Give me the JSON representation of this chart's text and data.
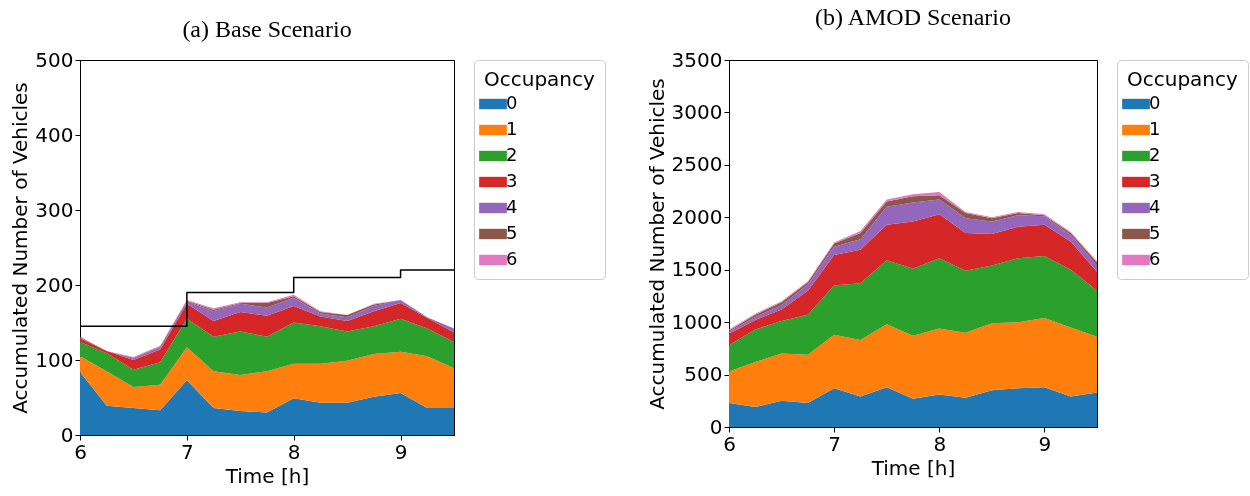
{
  "chart_data": [
    {
      "type": "area",
      "title": "(a) Base Scenario",
      "xlabel": "Time [h]",
      "ylabel": "Accumulated Number of Vehicles",
      "legend_title": "Occupancy",
      "legend": "right",
      "stacked": true,
      "xlim": [
        6,
        9.5
      ],
      "xticks": [
        6,
        7,
        8,
        9
      ],
      "ylim": [
        0,
        500
      ],
      "yticks": [
        0,
        100,
        200,
        300,
        400,
        500
      ],
      "x": [
        6,
        6.25,
        6.5,
        6.75,
        7,
        7.25,
        7.5,
        7.75,
        8,
        8.25,
        8.5,
        8.75,
        9,
        9.25,
        9.5
      ],
      "series": [
        {
          "name": "0",
          "color": "#1f77b4",
          "values": [
            84,
            39,
            36,
            33,
            73,
            36,
            32,
            30,
            49,
            43,
            43,
            51,
            56,
            36,
            36
          ]
        },
        {
          "name": "1",
          "color": "#ff7f0e",
          "values": [
            21,
            46,
            28,
            34,
            44,
            49,
            48,
            55,
            46,
            52,
            56,
            57,
            55,
            69,
            53
          ]
        },
        {
          "name": "2",
          "color": "#2ca02c",
          "values": [
            19,
            24,
            23,
            30,
            38,
            46,
            58,
            46,
            55,
            50,
            39,
            37,
            44,
            37,
            35
          ]
        },
        {
          "name": "3",
          "color": "#d62728",
          "values": [
            5,
            3,
            13,
            17,
            20,
            21,
            26,
            28,
            22,
            13,
            14,
            20,
            21,
            14,
            13
          ]
        },
        {
          "name": "4",
          "color": "#9467bd",
          "values": [
            1,
            0,
            2,
            3,
            3,
            13,
            11,
            11,
            11,
            4,
            5,
            7,
            4,
            1,
            5
          ]
        },
        {
          "name": "5",
          "color": "#8c564b",
          "values": [
            1,
            0,
            1,
            1,
            1,
            2,
            1,
            6,
            2,
            2,
            3,
            2,
            0,
            0,
            0
          ]
        },
        {
          "name": "6",
          "color": "#e377c2",
          "values": [
            0,
            0,
            1,
            1,
            1,
            2,
            1,
            1,
            2,
            1,
            0,
            1,
            0,
            0,
            0
          ]
        },
        {
          "type": "step",
          "color": "#000000",
          "x": [
            6,
            7,
            8,
            9,
            9.5
          ],
          "values": [
            145,
            190,
            210,
            220,
            220
          ]
        }
      ]
    },
    {
      "type": "area",
      "title": "(b) AMOD Scenario",
      "xlabel": "Time [h]",
      "ylabel": "Accumulated Number of Vehicles",
      "legend_title": "Occupancy",
      "legend": "right",
      "stacked": true,
      "xlim": [
        6,
        9.5
      ],
      "xticks": [
        6,
        7,
        8,
        9
      ],
      "ylim": [
        0,
        3500
      ],
      "yticks": [
        0,
        500,
        1000,
        1500,
        2000,
        2500,
        3000,
        3500
      ],
      "x": [
        6,
        6.25,
        6.5,
        6.75,
        7,
        7.25,
        7.5,
        7.75,
        8,
        8.25,
        8.5,
        8.75,
        9,
        9.25,
        9.5
      ],
      "series": [
        {
          "name": "0",
          "color": "#1f77b4",
          "values": [
            230,
            190,
            250,
            230,
            370,
            290,
            380,
            270,
            310,
            280,
            350,
            370,
            380,
            290,
            330
          ]
        },
        {
          "name": "1",
          "color": "#ff7f0e",
          "values": [
            300,
            430,
            450,
            460,
            510,
            540,
            600,
            600,
            630,
            620,
            640,
            630,
            660,
            660,
            530
          ]
        },
        {
          "name": "2",
          "color": "#2ca02c",
          "values": [
            250,
            310,
            310,
            380,
            470,
            540,
            610,
            640,
            670,
            590,
            550,
            610,
            590,
            550,
            440
          ]
        },
        {
          "name": "3",
          "color": "#d62728",
          "values": [
            110,
            90,
            110,
            230,
            290,
            320,
            340,
            450,
            420,
            360,
            300,
            300,
            300,
            270,
            180
          ]
        },
        {
          "name": "4",
          "color": "#9467bd",
          "values": [
            20,
            30,
            40,
            60,
            80,
            100,
            170,
            180,
            140,
            140,
            120,
            110,
            80,
            60,
            60
          ]
        },
        {
          "name": "5",
          "color": "#8c564b",
          "values": [
            10,
            20,
            30,
            20,
            30,
            60,
            50,
            60,
            40,
            50,
            30,
            20,
            10,
            20,
            30
          ]
        },
        {
          "name": "6",
          "color": "#e377c2",
          "values": [
            10,
            10,
            10,
            10,
            10,
            20,
            20,
            20,
            30,
            10,
            10,
            10,
            10,
            10,
            10
          ]
        }
      ]
    }
  ]
}
